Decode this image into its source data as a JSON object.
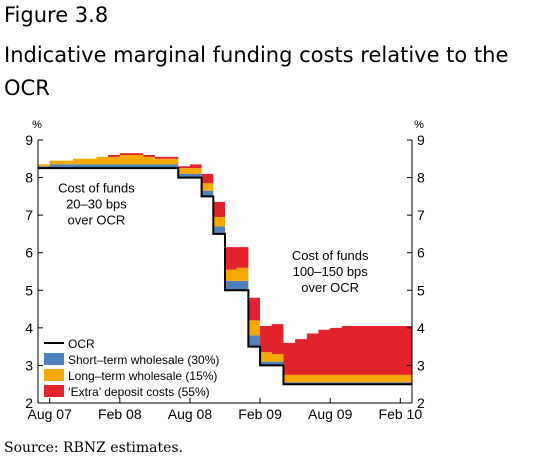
{
  "figure_label": "Figure 3.8",
  "title": "Indicative marginal funding costs relative to the OCR",
  "source": "Source: RBNZ estimates.",
  "colors": {
    "ocr": "#000000",
    "short_term": "#4f81bd",
    "long_term": "#f5a800",
    "extra_deposit": "#e2232b"
  },
  "chart_data": {
    "type": "area",
    "title": "",
    "xlabel": "",
    "ylabel": "%",
    "ylabel_right": "%",
    "ylim": [
      2,
      9
    ],
    "yticks": [
      2,
      3,
      4,
      5,
      6,
      7,
      8,
      9
    ],
    "xticks": [
      "Aug 07",
      "Feb 08",
      "Aug 08",
      "Feb 09",
      "Aug 09",
      "Feb 10"
    ],
    "xlim": [
      "2007-07",
      "2010-03"
    ],
    "grid": false,
    "legend_position": "bottom-left",
    "x": [
      "2007-07",
      "2007-08",
      "2007-09",
      "2007-10",
      "2007-11",
      "2007-12",
      "2008-01",
      "2008-02",
      "2008-03",
      "2008-04",
      "2008-05",
      "2008-06",
      "2008-07",
      "2008-08",
      "2008-09",
      "2008-10",
      "2008-11",
      "2008-12",
      "2009-01",
      "2009-02",
      "2009-03",
      "2009-04",
      "2009-05",
      "2009-06",
      "2009-07",
      "2009-08",
      "2009-09",
      "2009-10",
      "2009-11",
      "2009-12",
      "2010-01",
      "2010-02",
      "2010-03"
    ],
    "series": [
      {
        "name": "OCR",
        "kind": "line",
        "values": [
          8.25,
          8.25,
          8.25,
          8.25,
          8.25,
          8.25,
          8.25,
          8.25,
          8.25,
          8.25,
          8.25,
          8.25,
          8.0,
          8.0,
          7.5,
          6.5,
          5.0,
          5.0,
          3.5,
          3.0,
          3.0,
          2.5,
          2.5,
          2.5,
          2.5,
          2.5,
          2.5,
          2.5,
          2.5,
          2.5,
          2.5,
          2.5,
          2.5
        ]
      },
      {
        "name": "Short–term wholesale (30%)",
        "kind": "area",
        "values": [
          0.05,
          0.1,
          0.1,
          0.1,
          0.1,
          0.1,
          0.1,
          0.1,
          0.1,
          0.1,
          0.1,
          0.1,
          0.1,
          0.1,
          0.15,
          0.2,
          0.25,
          0.25,
          0.3,
          0.1,
          0.1,
          0.05,
          0.05,
          0.05,
          0.05,
          0.05,
          0.05,
          0.05,
          0.05,
          0.05,
          0.05,
          0.05,
          0.05
        ]
      },
      {
        "name": "Long–term wholesale (15%)",
        "kind": "area",
        "values": [
          0.05,
          0.1,
          0.1,
          0.15,
          0.15,
          0.2,
          0.2,
          0.25,
          0.25,
          0.2,
          0.15,
          0.15,
          0.15,
          0.15,
          0.2,
          0.25,
          0.3,
          0.35,
          0.4,
          0.25,
          0.2,
          0.2,
          0.2,
          0.2,
          0.2,
          0.2,
          0.2,
          0.2,
          0.2,
          0.2,
          0.2,
          0.2,
          0.2
        ]
      },
      {
        "name": "‘Extra’ deposit costs (55%)",
        "kind": "area",
        "values": [
          0.0,
          0.0,
          0.0,
          0.0,
          0.0,
          0.0,
          0.05,
          0.05,
          0.05,
          0.05,
          0.05,
          0.05,
          0.05,
          0.1,
          0.25,
          0.4,
          0.6,
          0.55,
          0.6,
          0.7,
          0.8,
          0.85,
          0.95,
          1.1,
          1.2,
          1.25,
          1.3,
          1.3,
          1.3,
          1.3,
          1.3,
          1.3,
          1.3
        ]
      }
    ],
    "annotations": [
      {
        "lines": [
          "Cost of funds",
          "20–30 bps",
          "over OCR"
        ],
        "x": "2007-12",
        "y": 7.6
      },
      {
        "lines": [
          "Cost of funds",
          "100–150 bps",
          "over OCR"
        ],
        "x": "2009-08",
        "y": 5.8
      }
    ]
  }
}
